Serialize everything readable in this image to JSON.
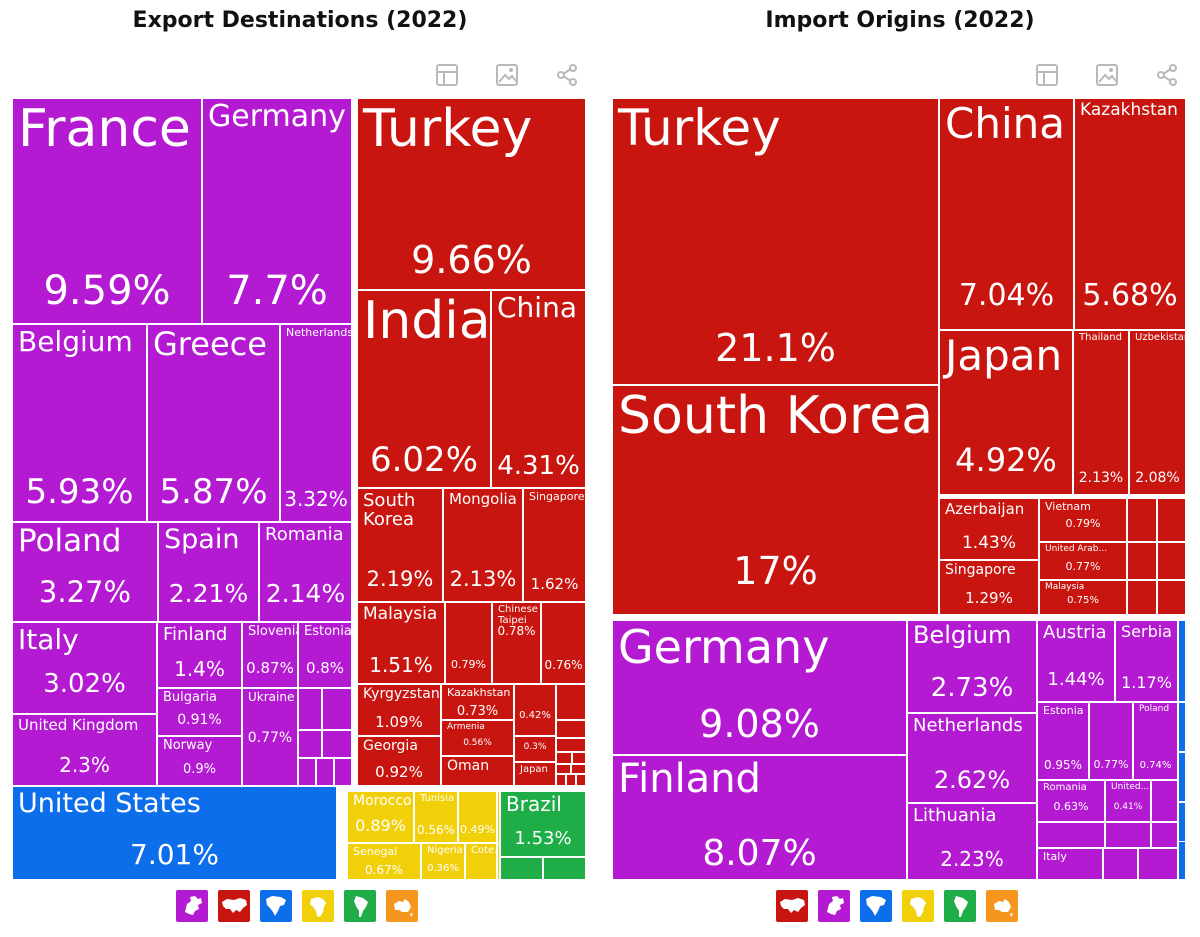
{
  "colors": {
    "europe": "#b31ad1",
    "asia": "#c9150f",
    "north_america": "#0d6eeb",
    "africa": "#f2d009",
    "south_america": "#1fad48",
    "oceania": "#f7961e",
    "tool_icon": "#b9b9b9"
  },
  "exports": {
    "title": "Export Destinations (2022)",
    "tools": [
      "table-icon",
      "image-icon",
      "share-icon"
    ],
    "legend": [
      {
        "continent": "europe",
        "icon": "europe-map-icon"
      },
      {
        "continent": "asia",
        "icon": "asia-map-icon"
      },
      {
        "continent": "north_america",
        "icon": "north-america-map-icon"
      },
      {
        "continent": "africa",
        "icon": "africa-map-icon"
      },
      {
        "continent": "south_america",
        "icon": "south-america-map-icon"
      },
      {
        "continent": "oceania",
        "icon": "oceania-map-icon"
      }
    ]
  },
  "imports": {
    "title": "Import Origins (2022)",
    "tools": [
      "table-icon",
      "image-icon",
      "share-icon"
    ],
    "legend": [
      {
        "continent": "asia",
        "icon": "asia-map-icon"
      },
      {
        "continent": "europe",
        "icon": "europe-map-icon"
      },
      {
        "continent": "north_america",
        "icon": "north-america-map-icon"
      },
      {
        "continent": "africa",
        "icon": "africa-map-icon"
      },
      {
        "continent": "south_america",
        "icon": "south-america-map-icon"
      },
      {
        "continent": "oceania",
        "icon": "oceania-map-icon"
      }
    ]
  },
  "chart_data": [
    {
      "type": "treemap",
      "title": "Export Destinations (2022)",
      "unit": "%",
      "items": [
        {
          "name": "France",
          "value": 9.59,
          "continent": "europe"
        },
        {
          "name": "Germany",
          "value": 7.7,
          "continent": "europe"
        },
        {
          "name": "Belgium",
          "value": 5.93,
          "continent": "europe"
        },
        {
          "name": "Greece",
          "value": 5.87,
          "continent": "europe"
        },
        {
          "name": "Netherlands",
          "value": 3.32,
          "continent": "europe"
        },
        {
          "name": "Poland",
          "value": 3.27,
          "continent": "europe"
        },
        {
          "name": "Spain",
          "value": 2.21,
          "continent": "europe"
        },
        {
          "name": "Romania",
          "value": 2.14,
          "continent": "europe"
        },
        {
          "name": "Italy",
          "value": 3.02,
          "continent": "europe"
        },
        {
          "name": "Finland",
          "value": 1.4,
          "continent": "europe"
        },
        {
          "name": "Slovenia",
          "value": 0.87,
          "continent": "europe"
        },
        {
          "name": "Estonia",
          "value": 0.8,
          "continent": "europe"
        },
        {
          "name": "United Kingdom",
          "value": 2.3,
          "continent": "europe"
        },
        {
          "name": "Bulgaria",
          "value": 0.91,
          "continent": "europe"
        },
        {
          "name": "Ukraine",
          "value": 0.77,
          "continent": "europe"
        },
        {
          "name": "Norway",
          "value": 0.9,
          "continent": "europe"
        },
        {
          "name": "Turkey",
          "value": 9.66,
          "continent": "asia"
        },
        {
          "name": "India",
          "value": 6.02,
          "continent": "asia"
        },
        {
          "name": "China",
          "value": 4.31,
          "continent": "asia"
        },
        {
          "name": "South Korea",
          "value": 2.19,
          "continent": "asia"
        },
        {
          "name": "Mongolia",
          "value": 2.13,
          "continent": "asia"
        },
        {
          "name": "Singapore",
          "value": 1.62,
          "continent": "asia"
        },
        {
          "name": "Malaysia",
          "value": 1.51,
          "continent": "asia"
        },
        {
          "name": "",
          "value": 0.79,
          "continent": "asia"
        },
        {
          "name": "Chinese Taipei",
          "value": 0.78,
          "continent": "asia"
        },
        {
          "name": "",
          "value": 0.76,
          "continent": "asia"
        },
        {
          "name": "Kyrgyzstan",
          "value": 1.09,
          "continent": "asia"
        },
        {
          "name": "Kazakhstan",
          "value": 0.73,
          "continent": "asia"
        },
        {
          "name": "",
          "value": 0.42,
          "continent": "asia"
        },
        {
          "name": "Armenia",
          "value": 0.56,
          "continent": "asia"
        },
        {
          "name": "",
          "value": 0.3,
          "continent": "asia"
        },
        {
          "name": "Georgia",
          "value": 0.92,
          "continent": "asia"
        },
        {
          "name": "Oman",
          "value": null,
          "continent": "asia"
        },
        {
          "name": "Japan",
          "value": null,
          "continent": "asia"
        },
        {
          "name": "United States",
          "value": 7.01,
          "continent": "north_america"
        },
        {
          "name": "Morocco",
          "value": 0.89,
          "continent": "africa"
        },
        {
          "name": "Tunisia",
          "value": 0.56,
          "continent": "africa"
        },
        {
          "name": "",
          "value": 0.49,
          "continent": "africa"
        },
        {
          "name": "Senegal",
          "value": 0.67,
          "continent": "africa"
        },
        {
          "name": "Nigeria",
          "value": 0.36,
          "continent": "africa"
        },
        {
          "name": "Cote...",
          "value": null,
          "continent": "africa"
        },
        {
          "name": "Brazil",
          "value": 1.53,
          "continent": "south_america"
        }
      ]
    },
    {
      "type": "treemap",
      "title": "Import Origins (2022)",
      "unit": "%",
      "items": [
        {
          "name": "Turkey",
          "value": 21.1,
          "continent": "asia"
        },
        {
          "name": "South Korea",
          "value": 17,
          "continent": "asia"
        },
        {
          "name": "China",
          "value": 7.04,
          "continent": "asia"
        },
        {
          "name": "Kazakhstan",
          "value": 5.68,
          "continent": "asia"
        },
        {
          "name": "Japan",
          "value": 4.92,
          "continent": "asia"
        },
        {
          "name": "Thailand",
          "value": 2.13,
          "continent": "asia"
        },
        {
          "name": "Uzbekistan",
          "value": 2.08,
          "continent": "asia"
        },
        {
          "name": "Azerbaijan",
          "value": 1.43,
          "continent": "asia"
        },
        {
          "name": "Vietnam",
          "value": 0.79,
          "continent": "asia"
        },
        {
          "name": "United Arab...",
          "value": 0.77,
          "continent": "asia"
        },
        {
          "name": "Singapore",
          "value": 1.29,
          "continent": "asia"
        },
        {
          "name": "Malaysia",
          "value": 0.75,
          "continent": "asia"
        },
        {
          "name": "Germany",
          "value": 9.08,
          "continent": "europe"
        },
        {
          "name": "Finland",
          "value": 8.07,
          "continent": "europe"
        },
        {
          "name": "Belgium",
          "value": 2.73,
          "continent": "europe"
        },
        {
          "name": "Netherlands",
          "value": 2.62,
          "continent": "europe"
        },
        {
          "name": "Lithuania",
          "value": 2.23,
          "continent": "europe"
        },
        {
          "name": "Austria",
          "value": 1.44,
          "continent": "europe"
        },
        {
          "name": "Serbia",
          "value": 1.17,
          "continent": "europe"
        },
        {
          "name": "Estonia",
          "value": 0.95,
          "continent": "europe"
        },
        {
          "name": "",
          "value": 0.77,
          "continent": "europe"
        },
        {
          "name": "Poland",
          "value": 0.74,
          "continent": "europe"
        },
        {
          "name": "Romania",
          "value": 0.63,
          "continent": "europe"
        },
        {
          "name": "United...",
          "value": 0.41,
          "continent": "europe"
        },
        {
          "name": "Italy",
          "value": null,
          "continent": "europe"
        }
      ]
    }
  ]
}
